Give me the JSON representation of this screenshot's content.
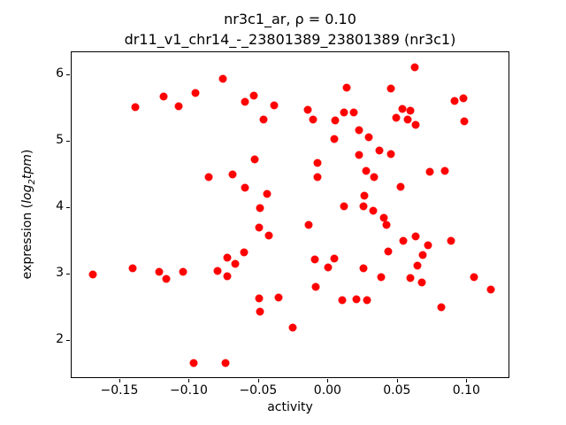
{
  "chart_data": {
    "type": "scatter",
    "title_line1": "nr3c1_ar, ρ = 0.10",
    "title_line2": "dr11_v1_chr14_-_23801389_23801389 (nr3c1)",
    "xlabel": "activity",
    "ylabel_parts": {
      "prefix": "expression (",
      "math_main": "log",
      "math_sub": "2",
      "math_tail": "tpm",
      "close": ")"
    },
    "marker_color": "#ff0000",
    "marker_size_px": 9,
    "xlim": [
      -0.185,
      0.131
    ],
    "ylim": [
      1.42,
      6.35
    ],
    "grid": false,
    "xticks": [
      {
        "v": -0.15,
        "label": "−0.15"
      },
      {
        "v": -0.1,
        "label": "−0.10"
      },
      {
        "v": -0.05,
        "label": "−0.05"
      },
      {
        "v": 0.0,
        "label": "0.00"
      },
      {
        "v": 0.05,
        "label": "0.05"
      },
      {
        "v": 0.1,
        "label": "0.10"
      }
    ],
    "yticks": [
      {
        "v": 2,
        "label": "2"
      },
      {
        "v": 3,
        "label": "3"
      },
      {
        "v": 4,
        "label": "4"
      },
      {
        "v": 5,
        "label": "5"
      },
      {
        "v": 6,
        "label": "6"
      }
    ],
    "points": [
      [
        -0.139,
        5.52
      ],
      [
        -0.119,
        5.68
      ],
      [
        -0.108,
        5.53
      ],
      [
        -0.096,
        5.74
      ],
      [
        -0.076,
        5.95
      ],
      [
        -0.06,
        5.6
      ],
      [
        -0.054,
        5.7
      ],
      [
        -0.039,
        5.55
      ],
      [
        -0.047,
        5.34
      ],
      [
        -0.053,
        4.73
      ],
      [
        -0.086,
        4.47
      ],
      [
        -0.069,
        4.5
      ],
      [
        -0.06,
        4.31
      ],
      [
        -0.044,
        4.21
      ],
      [
        -0.049,
        4.0
      ],
      [
        0.013,
        5.82
      ],
      [
        -0.015,
        5.48
      ],
      [
        -0.011,
        5.34
      ],
      [
        0.005,
        5.32
      ],
      [
        0.011,
        5.44
      ],
      [
        0.018,
        5.44
      ],
      [
        0.022,
        5.17
      ],
      [
        0.029,
        5.07
      ],
      [
        0.004,
        5.04
      ],
      [
        0.037,
        4.87
      ],
      [
        0.045,
        4.81
      ],
      [
        0.022,
        4.8
      ],
      [
        -0.008,
        4.68
      ],
      [
        0.027,
        4.56
      ],
      [
        0.033,
        4.47
      ],
      [
        -0.008,
        4.47
      ],
      [
        0.026,
        4.19
      ],
      [
        0.011,
        4.03
      ],
      [
        0.025,
        4.03
      ],
      [
        0.032,
        3.96
      ],
      [
        0.04,
        3.85
      ],
      [
        0.062,
        6.12
      ],
      [
        0.045,
        5.8
      ],
      [
        0.091,
        5.62
      ],
      [
        0.097,
        5.66
      ],
      [
        0.053,
        5.49
      ],
      [
        0.059,
        5.47
      ],
      [
        0.049,
        5.36
      ],
      [
        0.057,
        5.33
      ],
      [
        0.063,
        5.25
      ],
      [
        0.098,
        5.31
      ],
      [
        0.073,
        4.54
      ],
      [
        0.084,
        4.56
      ],
      [
        0.052,
        4.32
      ],
      [
        0.063,
        3.57
      ],
      [
        0.054,
        3.5
      ],
      [
        0.072,
        3.44
      ],
      [
        0.088,
        3.5
      ],
      [
        0.068,
        3.29
      ],
      [
        -0.014,
        3.75
      ],
      [
        0.042,
        3.75
      ],
      [
        0.043,
        3.34
      ],
      [
        -0.01,
        3.23
      ],
      [
        0.004,
        3.24
      ],
      [
        0.0,
        3.11
      ],
      [
        0.025,
        3.09
      ],
      [
        0.038,
        2.96
      ],
      [
        -0.009,
        2.81
      ],
      [
        0.01,
        2.61
      ],
      [
        0.02,
        2.62
      ],
      [
        0.028,
        2.61
      ],
      [
        0.064,
        3.13
      ],
      [
        0.059,
        2.94
      ],
      [
        0.067,
        2.88
      ],
      [
        0.105,
        2.96
      ],
      [
        0.117,
        2.77
      ],
      [
        0.081,
        2.5
      ],
      [
        -0.17,
        3.0
      ],
      [
        -0.141,
        3.09
      ],
      [
        -0.122,
        3.03
      ],
      [
        -0.117,
        2.93
      ],
      [
        -0.105,
        3.04
      ],
      [
        -0.05,
        3.71
      ],
      [
        -0.043,
        3.58
      ],
      [
        -0.061,
        3.33
      ],
      [
        -0.073,
        3.25
      ],
      [
        -0.067,
        3.16
      ],
      [
        -0.08,
        3.05
      ],
      [
        -0.073,
        2.97
      ],
      [
        -0.05,
        2.63
      ],
      [
        -0.036,
        2.65
      ],
      [
        -0.049,
        2.43
      ],
      [
        -0.026,
        2.2
      ],
      [
        -0.097,
        1.66
      ],
      [
        -0.074,
        1.66
      ]
    ]
  }
}
